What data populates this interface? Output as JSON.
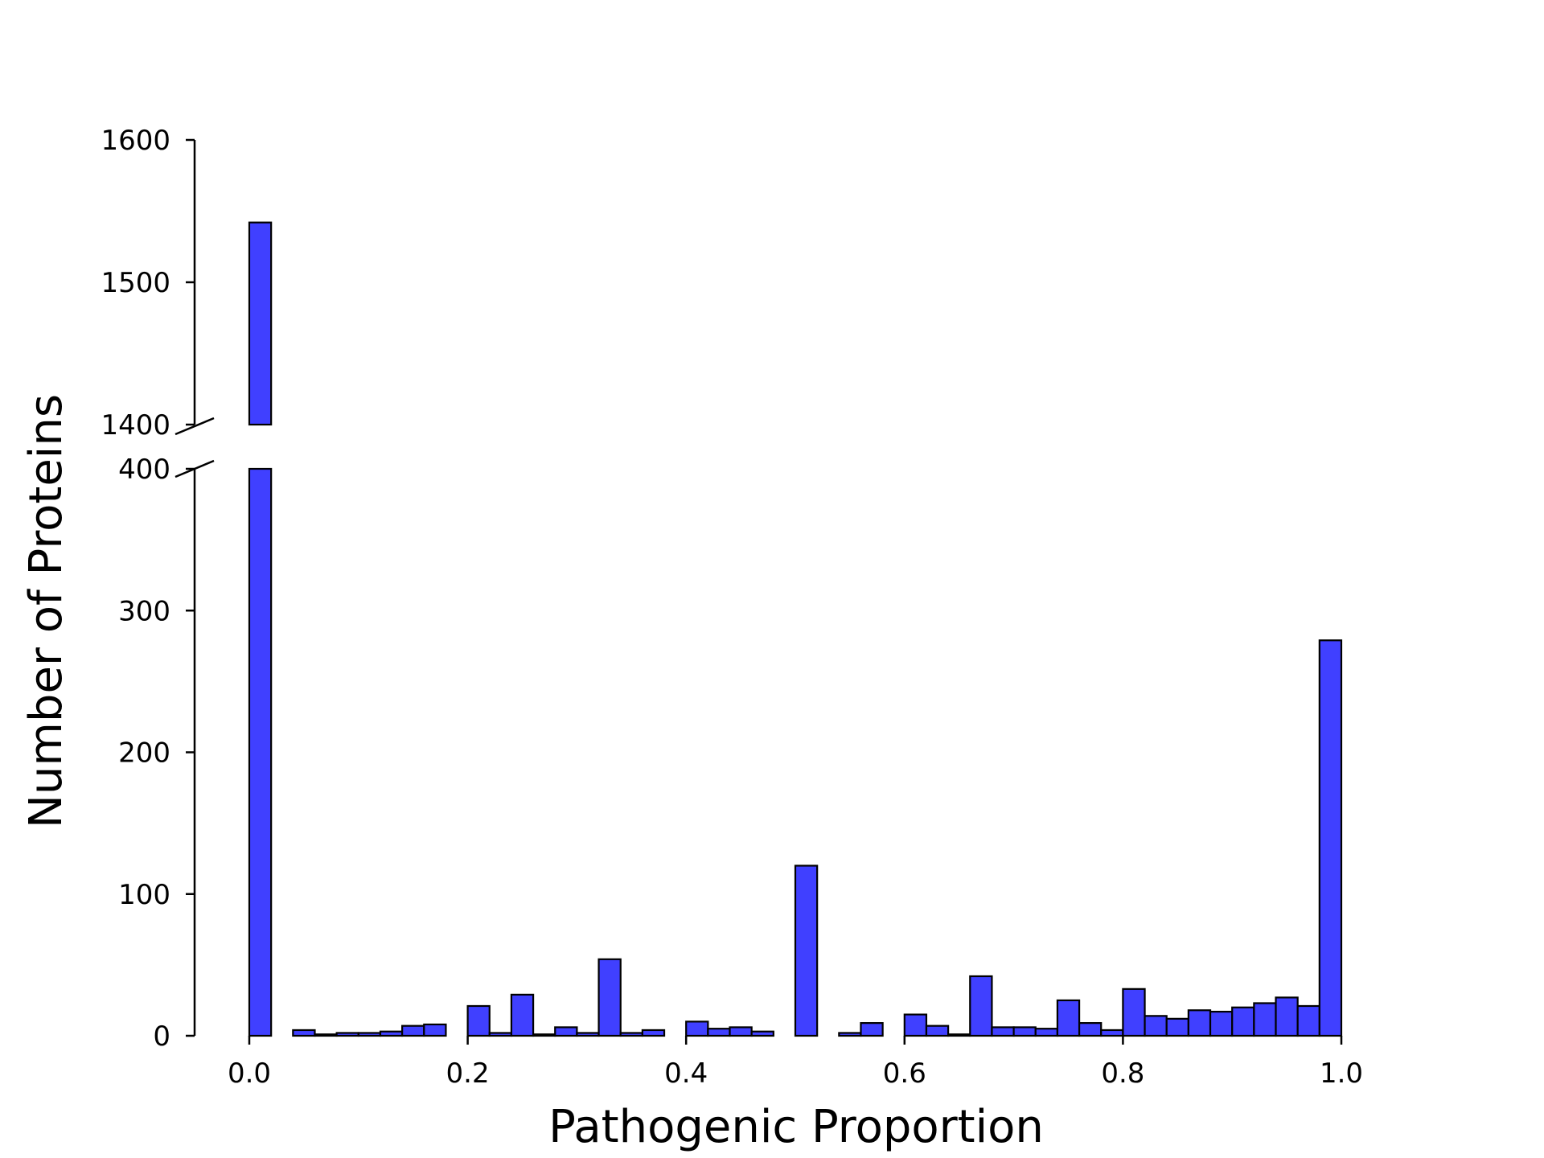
{
  "chart_data": {
    "type": "bar",
    "xlabel": "Pathogenic Proportion",
    "ylabel": "Number of Proteins",
    "bar_color": "#4040ff",
    "edge_color": "#000000",
    "xlim": [
      0.0,
      1.0
    ],
    "x_ticks": [
      "0.0",
      "0.2",
      "0.4",
      "0.6",
      "0.8",
      "1.0"
    ],
    "x_tick_values": [
      0.0,
      0.2,
      0.4,
      0.6,
      0.8,
      1.0
    ],
    "broken_y_axis": true,
    "lower_ylim": [
      0,
      400
    ],
    "upper_ylim": [
      1400,
      1600
    ],
    "lower_y_ticks": [
      "0",
      "100",
      "200",
      "300",
      "400"
    ],
    "lower_y_tick_values": [
      0,
      100,
      200,
      300,
      400
    ],
    "upper_y_ticks": [
      "1400",
      "1500",
      "1600"
    ],
    "upper_y_tick_values": [
      1400,
      1500,
      1600
    ],
    "bin_width": 0.02,
    "bin_starts": [
      0.0,
      0.02,
      0.04,
      0.06,
      0.08,
      0.1,
      0.12,
      0.14,
      0.16,
      0.18,
      0.2,
      0.22,
      0.24,
      0.26,
      0.28,
      0.3,
      0.32,
      0.34,
      0.36,
      0.38,
      0.4,
      0.42,
      0.44,
      0.46,
      0.48,
      0.5,
      0.52,
      0.54,
      0.56,
      0.58,
      0.6,
      0.62,
      0.64,
      0.66,
      0.68,
      0.7,
      0.72,
      0.74,
      0.76,
      0.78,
      0.8,
      0.82,
      0.84,
      0.86,
      0.88,
      0.9,
      0.92,
      0.94,
      0.96,
      0.98
    ],
    "values": [
      1542,
      0,
      4,
      1,
      2,
      2,
      3,
      7,
      8,
      0,
      21,
      2,
      29,
      1,
      6,
      2,
      54,
      2,
      4,
      0,
      10,
      5,
      6,
      3,
      0,
      120,
      0,
      2,
      9,
      0,
      15,
      7,
      1,
      42,
      6,
      6,
      5,
      25,
      9,
      4,
      33,
      14,
      12,
      18,
      17,
      20,
      23,
      27,
      21,
      279
    ],
    "grid": false,
    "legend": "none"
  }
}
